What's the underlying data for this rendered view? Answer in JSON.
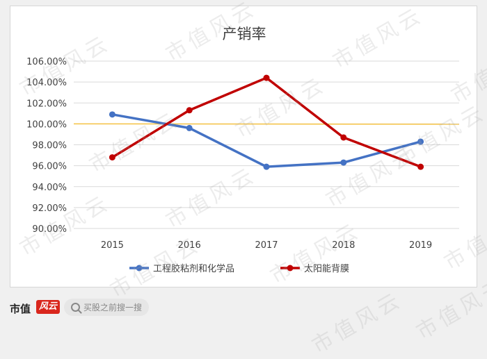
{
  "chart_data": {
    "type": "line",
    "title": "产销率",
    "categories": [
      "2015",
      "2016",
      "2017",
      "2018",
      "2019"
    ],
    "y_ticks": [
      "90.00%",
      "92.00%",
      "94.00%",
      "96.00%",
      "98.00%",
      "100.00%",
      "102.00%",
      "104.00%",
      "106.00%"
    ],
    "ylim": [
      90,
      106
    ],
    "grid": true,
    "legend_position": "bottom",
    "series": [
      {
        "name": "工程胶粘剂和化学品",
        "color": "#4472c4",
        "values": [
          100.9,
          99.6,
          95.9,
          96.3,
          98.3
        ]
      },
      {
        "name": "太阳能背膜",
        "color": "#c00000",
        "values": [
          96.8,
          101.3,
          104.4,
          98.7,
          95.9
        ]
      }
    ],
    "reference_line": {
      "value": 100.0,
      "color": "#f5c242"
    }
  },
  "watermark_text": "市值风云",
  "footer": {
    "brand": "市值",
    "brand_logo": "风云",
    "search_placeholder": "买股之前搜一搜",
    "search_icon": "search-icon"
  }
}
